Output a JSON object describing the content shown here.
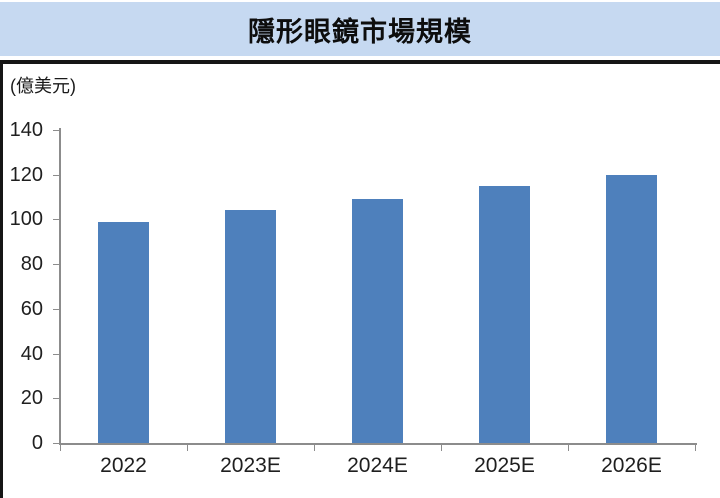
{
  "header": {
    "title": "隱形眼鏡市場規模"
  },
  "chart_data": {
    "type": "bar",
    "title": "隱形眼鏡市場規模",
    "unit_label": "(億美元)",
    "ylabel": "(億美元)",
    "xlabel": "",
    "categories": [
      "2022",
      "2023E",
      "2024E",
      "2025E",
      "2026E"
    ],
    "values": [
      99,
      104,
      109,
      115,
      120
    ],
    "yticks": [
      0,
      20,
      40,
      60,
      80,
      100,
      120,
      140
    ],
    "ylim": [
      0,
      140
    ],
    "grid": false,
    "legend": "none",
    "colors": {
      "bar": "#4E80BC",
      "axis": "#8c8c8c",
      "title_band": "#C6D9F1",
      "text": "#1f1f1f",
      "frame": "#161616"
    }
  }
}
